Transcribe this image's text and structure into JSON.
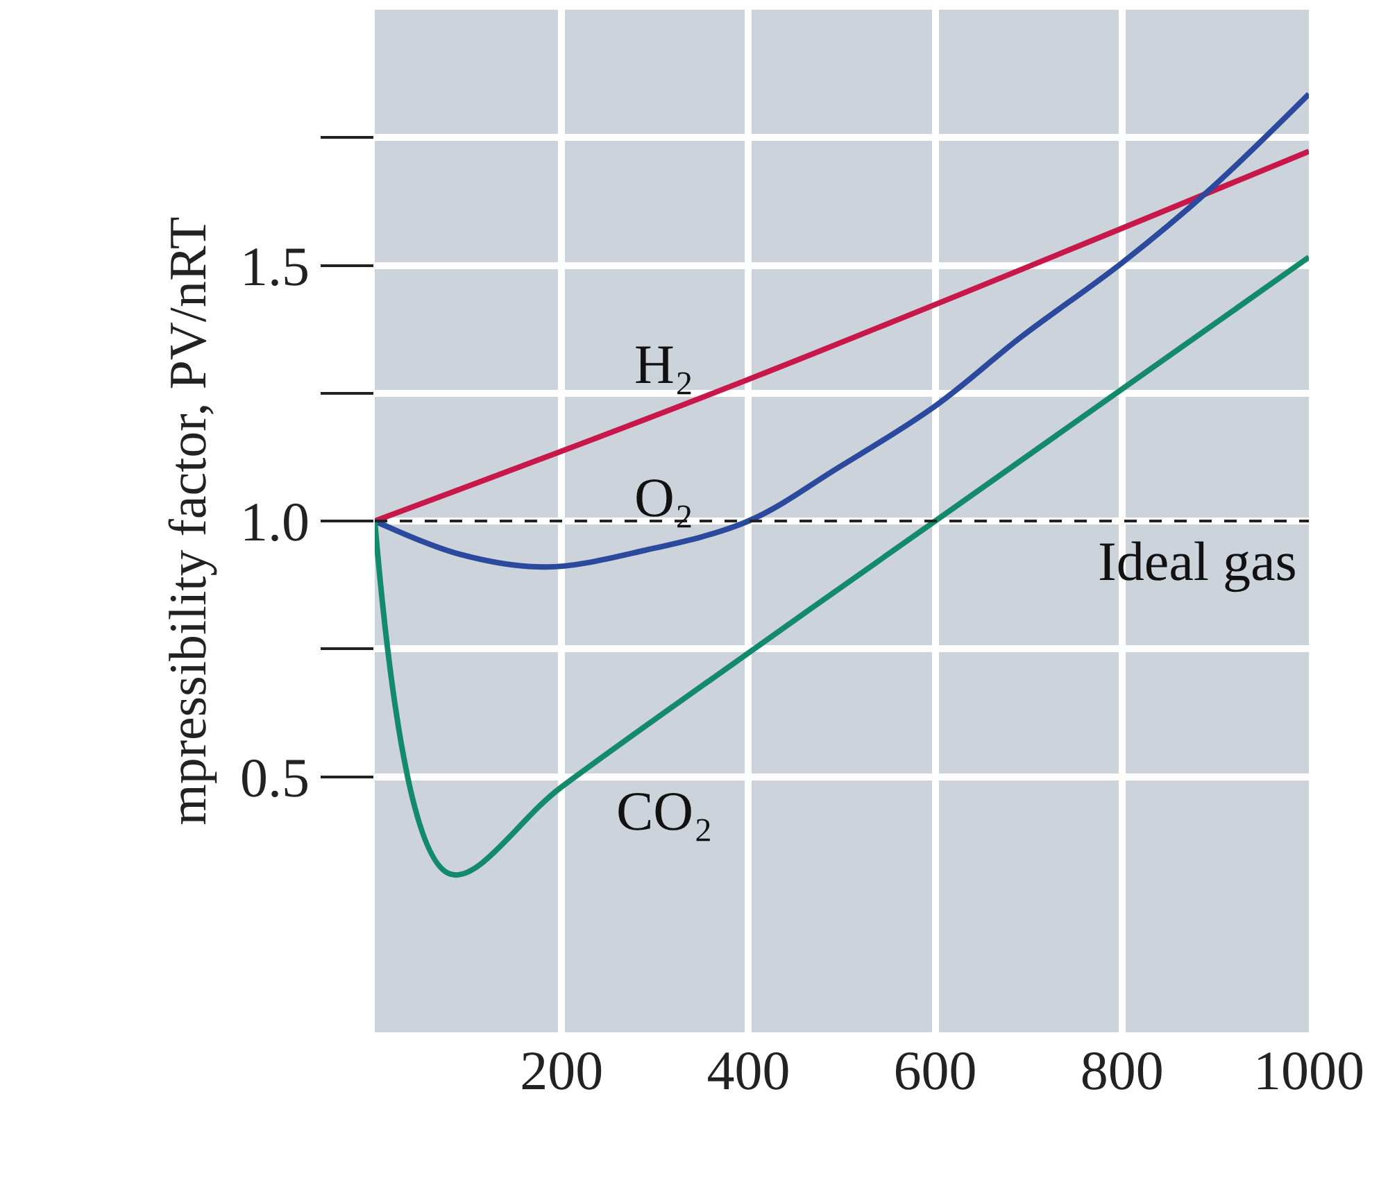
{
  "chart_data": {
    "type": "line",
    "ylabel": "mpressibility factor, PV/nRT",
    "xlim": [
      0,
      1000
    ],
    "xticks": [
      200,
      400,
      600,
      800,
      1000
    ],
    "ylim": [
      0,
      2.0
    ],
    "yticks": [
      {
        "value": 0.5,
        "label": "0.5"
      },
      {
        "value": 0.75,
        "label": null
      },
      {
        "value": 1.0,
        "label": "1.0"
      },
      {
        "value": 1.25,
        "label": null
      },
      {
        "value": 1.5,
        "label": "1.5"
      },
      {
        "value": 1.75,
        "label": null
      }
    ],
    "grid": true,
    "marker": "none",
    "line_style": "solid",
    "series": [
      {
        "name": "H₂",
        "color": "#c8174a",
        "x": [
          0,
          400,
          1000
        ],
        "values": [
          1.0,
          1.277,
          1.723
        ]
      },
      {
        "name": "O₂",
        "color": "#2b4a9e",
        "x": [
          0,
          91,
          183,
          290,
          400,
          495,
          600,
          692,
          800,
          895,
          1000
        ],
        "values": [
          1.0,
          0.935,
          0.91,
          0.943,
          1.0,
          1.103,
          1.225,
          1.36,
          1.505,
          1.65,
          1.835
        ]
      },
      {
        "name": "CO₂",
        "color": "#138a6c",
        "x": [
          0,
          80,
          200,
          400,
          600,
          1000
        ],
        "values": [
          1.0,
          0.31,
          0.48,
          0.742,
          1.0,
          1.516
        ]
      }
    ],
    "ref_lines": [
      {
        "axis": "y",
        "value": 1.0,
        "label": "Ideal gas",
        "color": "#222222",
        "line_style": "dashed"
      }
    ]
  }
}
